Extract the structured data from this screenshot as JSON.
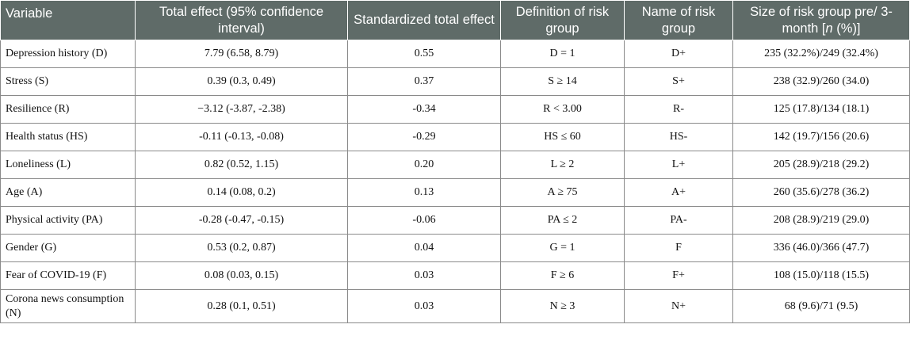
{
  "table": {
    "headers": [
      "Variable",
      "Total effect (95% confidence interval)",
      "Standardized total effect",
      "Definition of risk group",
      "Name of risk group",
      "Size of risk group pre/ 3-month [n (%)]"
    ],
    "rows": [
      [
        "Depression history (D)",
        "7.79 (6.58, 8.79)",
        "0.55",
        "D = 1",
        "D+",
        "235 (32.2%)/249 (32.4%)"
      ],
      [
        "Stress (S)",
        "0.39 (0.3, 0.49)",
        "0.37",
        "S ≥ 14",
        "S+",
        "238 (32.9)/260 (34.0)"
      ],
      [
        "Resilience (R)",
        "−3.12 (-3.87, -2.38)",
        "-0.34",
        "R < 3.00",
        "R-",
        "125 (17.8)/134 (18.1)"
      ],
      [
        "Health status (HS)",
        "-0.11 (-0.13, -0.08)",
        "-0.29",
        "HS ≤ 60",
        "HS-",
        "142 (19.7)/156 (20.6)"
      ],
      [
        "Loneliness (L)",
        "0.82 (0.52, 1.15)",
        "0.20",
        "L ≥ 2",
        "L+",
        "205 (28.9)/218 (29.2)"
      ],
      [
        "Age (A)",
        "0.14 (0.08, 0.2)",
        "0.13",
        "A ≥ 75",
        "A+",
        "260 (35.6)/278 (36.2)"
      ],
      [
        "Physical activity (PA)",
        "-0.28 (-0.47, -0.15)",
        "-0.06",
        "PA ≤ 2",
        "PA-",
        "208 (28.9)/219 (29.0)"
      ],
      [
        "Gender (G)",
        "0.53 (0.2, 0.87)",
        "0.04",
        "G = 1",
        "F",
        "336 (46.0)/366 (47.7)"
      ],
      [
        "Fear of COVID-19 (F)",
        "0.08 (0.03, 0.15)",
        "0.03",
        "F ≥ 6",
        "F+",
        "108 (15.0)/118 (15.5)"
      ],
      [
        "Corona news consumption (N)",
        "0.28 (0.1, 0.51)",
        "0.03",
        "N ≥ 3",
        "N+",
        "68 (9.6)/71 (9.5)"
      ]
    ]
  },
  "colors": {
    "header_bg": "#5f6b68",
    "header_text": "#ffffff",
    "border": "#8a8a8a"
  }
}
